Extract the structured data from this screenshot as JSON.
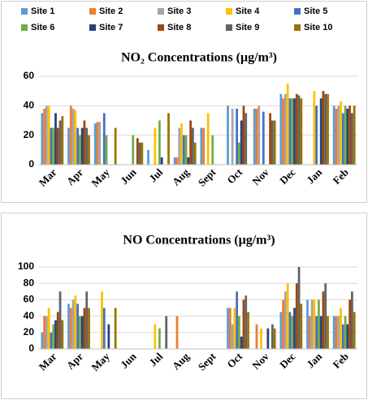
{
  "chart_data": [
    {
      "type": "bar",
      "title": "NO₂ Concentrations (μg/m³)",
      "categories": [
        "Mar",
        "Apr",
        "May",
        "Jun",
        "Jul",
        "Aug",
        "Sept",
        "Oct",
        "Nov",
        "Dec",
        "Jan",
        "Feb"
      ],
      "ylim": [
        0,
        60
      ],
      "yticks": [
        0,
        20,
        40,
        60
      ],
      "grid": true,
      "series": [
        {
          "name": "Site 1",
          "color": "#5b9bd5",
          "values": [
            35,
            25,
            28,
            0,
            10,
            5,
            25,
            40,
            38,
            48,
            0,
            40
          ]
        },
        {
          "name": "Site 2",
          "color": "#ed7d31",
          "values": [
            38,
            40,
            29,
            0,
            0,
            5,
            25,
            0,
            38,
            45,
            0,
            38
          ]
        },
        {
          "name": "Site 3",
          "color": "#a5a5a5",
          "values": [
            40,
            38,
            29,
            0,
            0,
            25,
            0,
            38,
            40,
            48,
            0,
            40
          ]
        },
        {
          "name": "Site 4",
          "color": "#ffc000",
          "values": [
            40,
            37,
            0,
            0,
            25,
            28,
            35,
            0,
            0,
            55,
            50,
            43
          ]
        },
        {
          "name": "Site 5",
          "color": "#4472c4",
          "values": [
            25,
            25,
            35,
            0,
            0,
            20,
            0,
            38,
            36,
            45,
            40,
            35
          ]
        },
        {
          "name": "Site 6",
          "color": "#70ad47",
          "values": [
            25,
            20,
            20,
            20,
            30,
            20,
            20,
            15,
            0,
            45,
            0,
            40
          ]
        },
        {
          "name": "Site 7",
          "color": "#264478",
          "values": [
            35,
            25,
            0,
            0,
            5,
            5,
            0,
            30,
            0,
            45,
            45,
            38
          ]
        },
        {
          "name": "Site 8",
          "color": "#9e480e",
          "values": [
            25,
            30,
            0,
            18,
            0,
            30,
            0,
            40,
            35,
            48,
            50,
            40
          ]
        },
        {
          "name": "Site 9",
          "color": "#636363",
          "values": [
            30,
            25,
            0,
            15,
            0,
            25,
            0,
            35,
            30,
            47,
            48,
            35
          ]
        },
        {
          "name": "Site 10",
          "color": "#997300",
          "values": [
            33,
            20,
            25,
            15,
            35,
            15,
            0,
            0,
            30,
            45,
            48,
            40
          ]
        }
      ]
    },
    {
      "type": "bar",
      "title": "NO Concentrations (μg/m³)",
      "categories": [
        "Mar",
        "Apr",
        "May",
        "Jun",
        "Jul",
        "Aug",
        "Sept",
        "Oct",
        "Nov",
        "Dec",
        "Jan",
        "Feb"
      ],
      "ylim": [
        0,
        100
      ],
      "yticks": [
        0,
        20,
        40,
        60,
        80,
        100
      ],
      "grid": true,
      "series": [
        {
          "values": [
            20,
            55,
            0,
            0,
            0,
            0,
            0,
            50,
            0,
            45,
            60,
            40
          ]
        },
        {
          "values": [
            40,
            50,
            0,
            0,
            0,
            40,
            0,
            50,
            30,
            60,
            40,
            40
          ]
        },
        {
          "values": [
            40,
            60,
            0,
            0,
            0,
            0,
            0,
            30,
            0,
            70,
            60,
            40
          ]
        },
        {
          "values": [
            50,
            65,
            70,
            0,
            30,
            0,
            0,
            50,
            25,
            80,
            60,
            50
          ]
        },
        {
          "values": [
            20,
            55,
            50,
            0,
            0,
            0,
            0,
            70,
            0,
            45,
            40,
            30
          ]
        },
        {
          "values": [
            30,
            40,
            0,
            0,
            25,
            0,
            0,
            40,
            0,
            40,
            60,
            40
          ]
        },
        {
          "values": [
            35,
            40,
            30,
            0,
            0,
            0,
            0,
            15,
            25,
            50,
            40,
            30
          ]
        },
        {
          "values": [
            45,
            50,
            0,
            0,
            0,
            0,
            0,
            60,
            0,
            80,
            70,
            60
          ]
        },
        {
          "values": [
            70,
            70,
            0,
            0,
            40,
            0,
            0,
            65,
            30,
            100,
            80,
            70
          ]
        },
        {
          "values": [
            35,
            50,
            50,
            0,
            0,
            0,
            0,
            45,
            25,
            55,
            40,
            45
          ]
        }
      ]
    }
  ]
}
